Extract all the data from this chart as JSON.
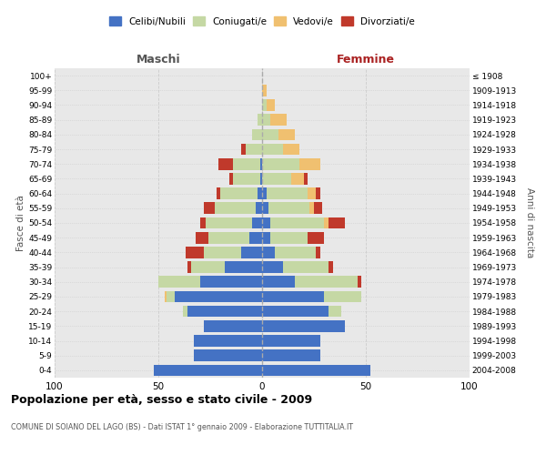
{
  "age_groups": [
    "0-4",
    "5-9",
    "10-14",
    "15-19",
    "20-24",
    "25-29",
    "30-34",
    "35-39",
    "40-44",
    "45-49",
    "50-54",
    "55-59",
    "60-64",
    "65-69",
    "70-74",
    "75-79",
    "80-84",
    "85-89",
    "90-94",
    "95-99",
    "100+"
  ],
  "birth_years": [
    "2004-2008",
    "1999-2003",
    "1994-1998",
    "1989-1993",
    "1984-1988",
    "1979-1983",
    "1974-1978",
    "1969-1973",
    "1964-1968",
    "1959-1963",
    "1954-1958",
    "1949-1953",
    "1944-1948",
    "1939-1943",
    "1934-1938",
    "1929-1933",
    "1924-1928",
    "1919-1923",
    "1914-1918",
    "1909-1913",
    "≤ 1908"
  ],
  "male_celibi": [
    52,
    33,
    33,
    28,
    36,
    42,
    30,
    18,
    10,
    6,
    5,
    3,
    2,
    1,
    1,
    0,
    0,
    0,
    0,
    0,
    0
  ],
  "male_coniugati": [
    0,
    0,
    0,
    0,
    2,
    4,
    20,
    16,
    18,
    20,
    22,
    20,
    18,
    13,
    13,
    8,
    5,
    2,
    0,
    0,
    0
  ],
  "male_vedovi": [
    0,
    0,
    0,
    0,
    0,
    1,
    0,
    0,
    0,
    0,
    0,
    0,
    0,
    0,
    0,
    0,
    0,
    0,
    0,
    0,
    0
  ],
  "male_divorziati": [
    0,
    0,
    0,
    0,
    0,
    0,
    0,
    2,
    9,
    6,
    3,
    5,
    2,
    2,
    7,
    2,
    0,
    0,
    0,
    0,
    0
  ],
  "female_nubili": [
    52,
    28,
    28,
    40,
    32,
    30,
    16,
    10,
    6,
    4,
    4,
    3,
    2,
    0,
    0,
    0,
    0,
    0,
    0,
    0,
    0
  ],
  "female_coniugate": [
    0,
    0,
    0,
    0,
    6,
    18,
    30,
    22,
    20,
    18,
    26,
    20,
    20,
    14,
    18,
    10,
    8,
    4,
    2,
    0,
    0
  ],
  "female_vedove": [
    0,
    0,
    0,
    0,
    0,
    0,
    0,
    0,
    0,
    0,
    2,
    2,
    4,
    6,
    10,
    8,
    8,
    8,
    4,
    2,
    0
  ],
  "female_divorziate": [
    0,
    0,
    0,
    0,
    0,
    0,
    2,
    2,
    2,
    8,
    8,
    4,
    2,
    2,
    0,
    0,
    0,
    0,
    0,
    0,
    0
  ],
  "color_celibi": "#4472c4",
  "color_coniugati": "#c5d8a4",
  "color_vedovi": "#f0c070",
  "color_divorziati": "#c0392b",
  "title": "Popolazione per età, sesso e stato civile - 2009",
  "subtitle": "COMUNE DI SOIANO DEL LAGO (BS) - Dati ISTAT 1° gennaio 2009 - Elaborazione TUTTITALIA.IT",
  "legend_labels": [
    "Celibi/Nubili",
    "Coniugati/e",
    "Vedovi/e",
    "Divorziati/e"
  ],
  "label_maschi": "Maschi",
  "label_femmine": "Femmine",
  "label_fasce": "Fasce di età",
  "label_anni": "Anni di nascita",
  "xlim": 100,
  "bg_axes": "#e8e8e8",
  "bg_fig": "#ffffff"
}
